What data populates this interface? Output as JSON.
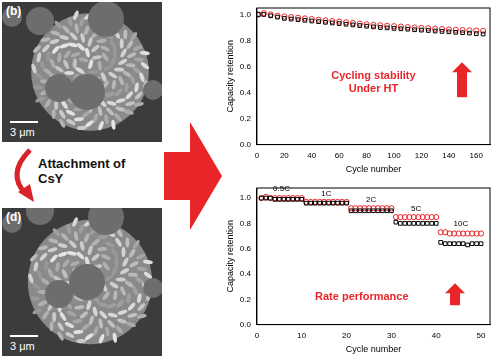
{
  "images": [
    {
      "label": "(b)",
      "scale_bar": "3 μm"
    },
    {
      "label": "(d)",
      "scale_bar": "3 μm"
    }
  ],
  "arrow_label": "Attachment of CsY",
  "chart_data": [
    {
      "type": "scatter",
      "x_label": "Cycle number",
      "y_label": "Capacity retention",
      "callout": [
        "Cycling stability",
        "Under HT"
      ],
      "callout_color": "#e8262a",
      "x": [
        1,
        5,
        10,
        15,
        20,
        25,
        30,
        35,
        40,
        45,
        50,
        55,
        60,
        65,
        70,
        75,
        80,
        85,
        90,
        95,
        100,
        105,
        110,
        115,
        120,
        125,
        130,
        135,
        140,
        145,
        150,
        155,
        160,
        165
      ],
      "series": [
        {
          "color": "#000000",
          "marker": "square",
          "values": [
            1.0,
            1.0,
            0.99,
            0.98,
            0.97,
            0.965,
            0.96,
            0.955,
            0.95,
            0.945,
            0.94,
            0.935,
            0.93,
            0.925,
            0.92,
            0.915,
            0.91,
            0.905,
            0.9,
            0.897,
            0.893,
            0.89,
            0.887,
            0.883,
            0.88,
            0.877,
            0.873,
            0.87,
            0.867,
            0.863,
            0.86,
            0.857,
            0.853,
            0.85
          ]
        },
        {
          "color": "#e8262a",
          "marker": "circle",
          "values": [
            1.0,
            1.01,
            1.0,
            0.99,
            0.985,
            0.98,
            0.975,
            0.97,
            0.965,
            0.96,
            0.955,
            0.95,
            0.945,
            0.94,
            0.935,
            0.93,
            0.925,
            0.92,
            0.917,
            0.913,
            0.91,
            0.907,
            0.903,
            0.9,
            0.897,
            0.894,
            0.891,
            0.888,
            0.885,
            0.882,
            0.88,
            0.878,
            0.876,
            0.874
          ]
        }
      ],
      "xlim": [
        0,
        170
      ],
      "xticks": [
        0,
        20,
        40,
        60,
        80,
        100,
        120,
        140,
        160
      ],
      "ylim": [
        0,
        1.05
      ],
      "yticks": [
        {
          "value": 0,
          "label": "0.0"
        },
        {
          "value": 0.2,
          "label": "0.2"
        },
        {
          "value": 0.4,
          "label": "0.4"
        },
        {
          "value": 0.6,
          "label": "0.6"
        },
        {
          "value": 0.8,
          "label": "0.8"
        },
        {
          "value": 1,
          "label": "1.0"
        }
      ],
      "grid": false
    },
    {
      "type": "scatter",
      "x_label": "Cycle number",
      "y_label": "Capacity retention",
      "callout": [
        "Rate performance"
      ],
      "callout_color": "#e8262a",
      "annotations": [
        "0.5C",
        "1C",
        "2C",
        "5C",
        "10C"
      ],
      "x": [
        1,
        2,
        3,
        4,
        5,
        6,
        7,
        8,
        9,
        10,
        11,
        12,
        13,
        14,
        15,
        16,
        17,
        18,
        19,
        20,
        21,
        22,
        23,
        24,
        25,
        26,
        27,
        28,
        29,
        30,
        31,
        32,
        33,
        34,
        35,
        36,
        37,
        38,
        39,
        40,
        41,
        42,
        43,
        44,
        45,
        46,
        47,
        48,
        49,
        50
      ],
      "series": [
        {
          "color": "#000000",
          "marker": "square",
          "values": [
            1.0,
            1.0,
            1.0,
            0.99,
            0.99,
            0.99,
            0.99,
            0.99,
            0.99,
            0.99,
            0.96,
            0.96,
            0.96,
            0.96,
            0.96,
            0.96,
            0.96,
            0.96,
            0.96,
            0.96,
            0.9,
            0.9,
            0.9,
            0.9,
            0.9,
            0.9,
            0.9,
            0.9,
            0.9,
            0.9,
            0.81,
            0.8,
            0.8,
            0.8,
            0.8,
            0.8,
            0.8,
            0.8,
            0.8,
            0.8,
            0.65,
            0.64,
            0.64,
            0.64,
            0.64,
            0.64,
            0.63,
            0.64,
            0.64,
            0.64
          ]
        },
        {
          "color": "#e8262a",
          "marker": "circle",
          "values": [
            1.0,
            1.01,
            1.0,
            1.0,
            1.0,
            1.0,
            1.0,
            1.0,
            1.0,
            1.0,
            0.97,
            0.97,
            0.97,
            0.97,
            0.97,
            0.97,
            0.97,
            0.97,
            0.97,
            0.97,
            0.92,
            0.92,
            0.92,
            0.92,
            0.92,
            0.92,
            0.92,
            0.92,
            0.92,
            0.92,
            0.85,
            0.85,
            0.85,
            0.85,
            0.85,
            0.85,
            0.85,
            0.85,
            0.85,
            0.85,
            0.73,
            0.73,
            0.72,
            0.72,
            0.72,
            0.72,
            0.72,
            0.72,
            0.72,
            0.72
          ]
        }
      ],
      "xlim": [
        0,
        52
      ],
      "xticks": [
        0,
        10,
        20,
        30,
        40,
        50
      ],
      "ylim": [
        0,
        1.08
      ],
      "yticks": [
        {
          "value": 0,
          "label": "0.0"
        },
        {
          "value": 0.2,
          "label": "0.2"
        },
        {
          "value": 0.4,
          "label": "0.4"
        },
        {
          "value": 0.6,
          "label": "0.6"
        },
        {
          "value": 0.8,
          "label": "0.8"
        },
        {
          "value": 1,
          "label": "1.0"
        }
      ],
      "grid": false
    }
  ]
}
